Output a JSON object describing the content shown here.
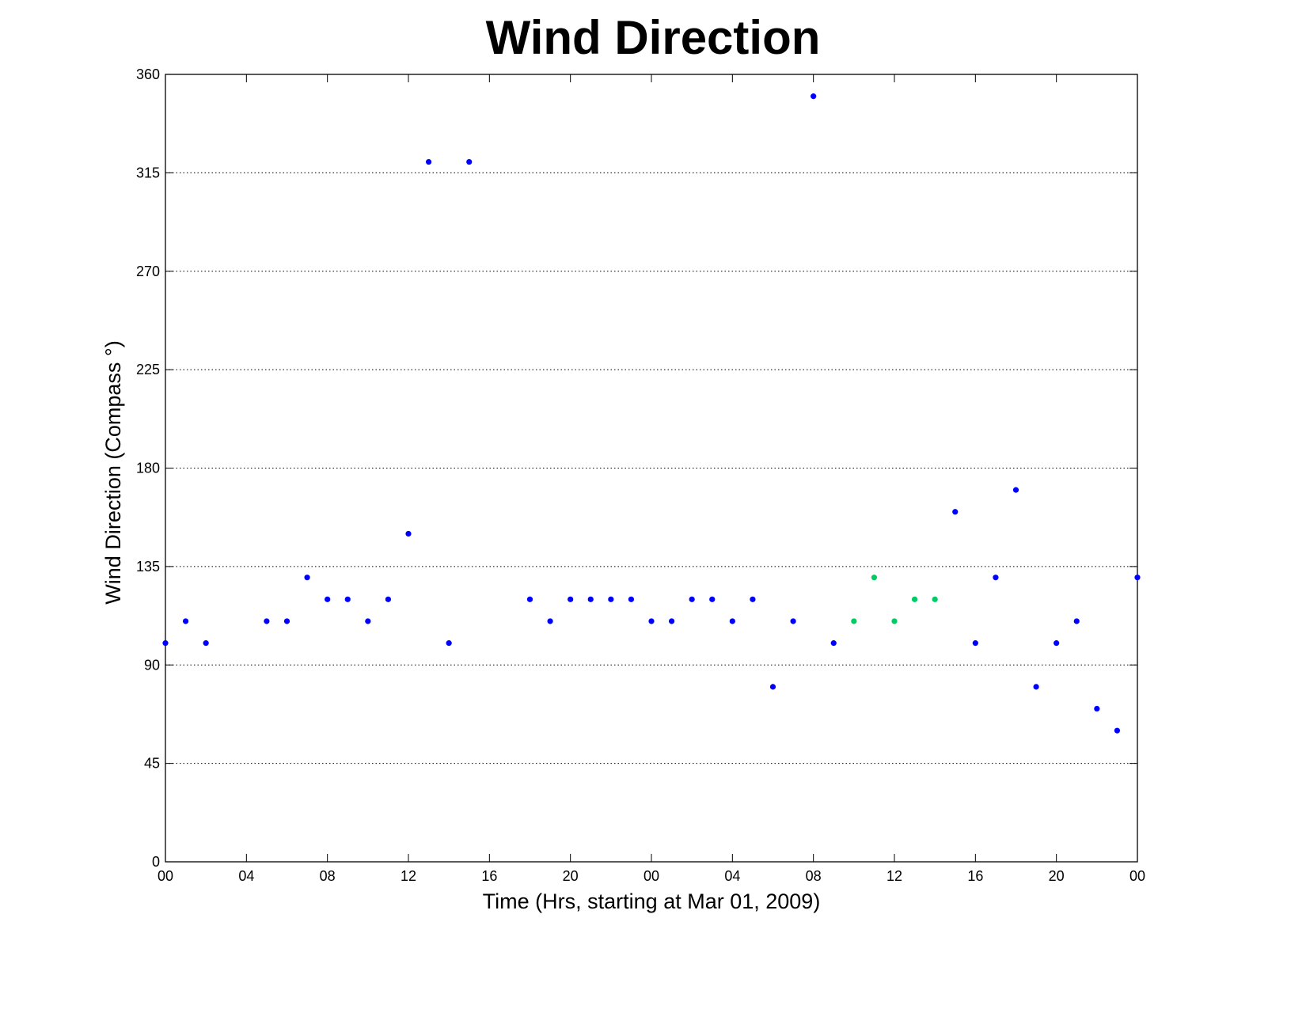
{
  "chart_data": {
    "type": "scatter",
    "title": "Wind Direction",
    "xlabel": "Time (Hrs, starting at Mar 01, 2009)",
    "ylabel": "Wind Direction (Compass  °)",
    "x_unit": "hours",
    "xlim": [
      0,
      48
    ],
    "ylim": [
      0,
      360
    ],
    "yticks": [
      0,
      45,
      90,
      135,
      180,
      225,
      270,
      315,
      360
    ],
    "xticks": [
      0,
      4,
      8,
      12,
      16,
      20,
      24,
      28,
      32,
      36,
      40,
      44,
      48
    ],
    "xtick_labels": [
      "00",
      "04",
      "08",
      "12",
      "16",
      "20",
      "00",
      "04",
      "08",
      "12",
      "16",
      "20",
      "00"
    ],
    "grid": "y-dotted",
    "series": [
      {
        "color": "#0000ff",
        "points": [
          [
            0,
            100
          ],
          [
            1,
            110
          ],
          [
            2,
            100
          ],
          [
            5,
            110
          ],
          [
            6,
            110
          ],
          [
            7,
            130
          ],
          [
            8,
            120
          ],
          [
            9,
            120
          ],
          [
            10,
            110
          ],
          [
            11,
            120
          ],
          [
            12,
            150
          ],
          [
            13,
            320
          ],
          [
            14,
            100
          ],
          [
            15,
            320
          ],
          [
            18,
            120
          ],
          [
            19,
            110
          ],
          [
            20,
            120
          ],
          [
            21,
            120
          ],
          [
            22,
            120
          ],
          [
            23,
            120
          ],
          [
            24,
            110
          ],
          [
            25,
            110
          ],
          [
            26,
            120
          ],
          [
            27,
            120
          ],
          [
            28,
            110
          ],
          [
            29,
            120
          ],
          [
            30,
            80
          ],
          [
            31,
            110
          ],
          [
            32,
            350
          ],
          [
            33,
            100
          ],
          [
            39,
            160
          ],
          [
            40,
            100
          ],
          [
            41,
            130
          ],
          [
            42,
            170
          ],
          [
            43,
            80
          ],
          [
            44,
            100
          ],
          [
            45,
            110
          ],
          [
            46,
            70
          ],
          [
            47,
            60
          ],
          [
            48,
            130
          ]
        ]
      },
      {
        "color": "#00cc66",
        "points": [
          [
            34,
            110
          ],
          [
            35,
            130
          ],
          [
            36,
            110
          ],
          [
            37,
            120
          ],
          [
            38,
            120
          ]
        ]
      }
    ]
  }
}
